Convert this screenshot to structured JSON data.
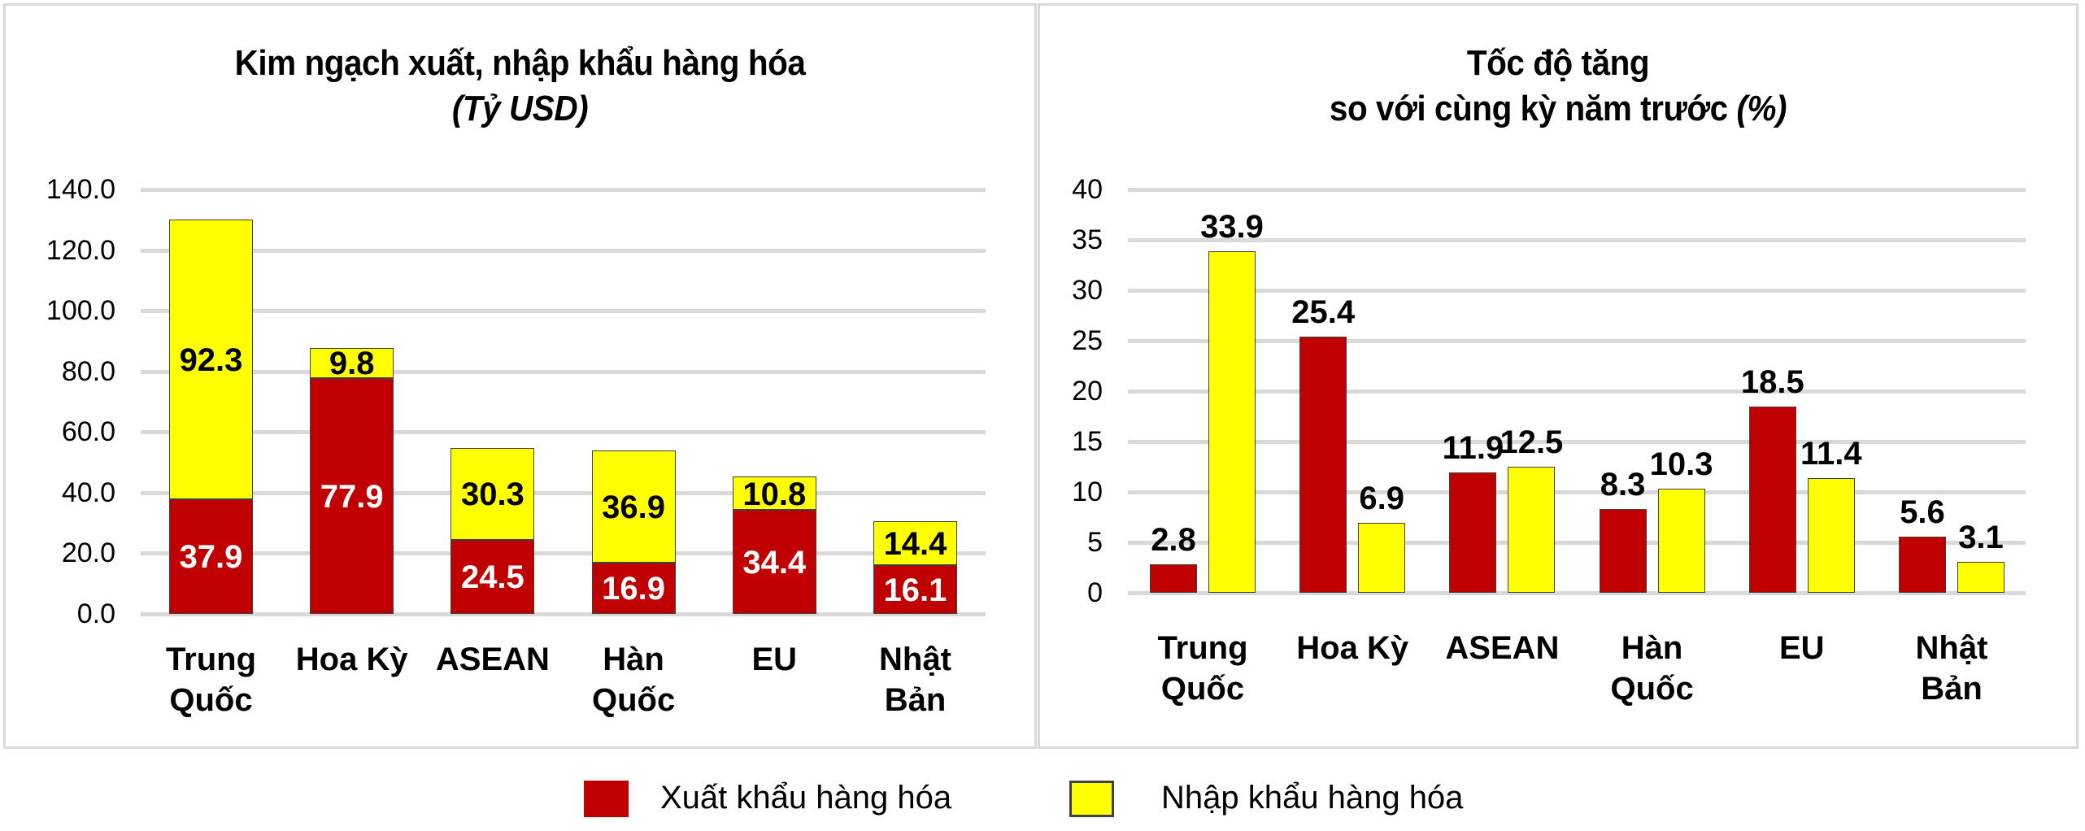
{
  "chart_data": [
    {
      "type": "bar",
      "stacked": true,
      "title": "Kim ngạch xuất, nhập khẩu hàng hóa",
      "subtitle": "(Tỷ USD)",
      "categories": [
        "Trung Quốc",
        "Hoa Kỳ",
        "ASEAN",
        "Hàn Quốc",
        "EU",
        "Nhật Bản"
      ],
      "series": [
        {
          "name": "Xuất khẩu hàng hóa",
          "color": "#c00000",
          "values": [
            37.9,
            77.9,
            24.5,
            16.9,
            34.4,
            16.1
          ]
        },
        {
          "name": "Nhập khẩu hàng hóa",
          "color": "#ffff00",
          "values": [
            92.3,
            9.8,
            30.3,
            36.9,
            10.8,
            14.4
          ]
        }
      ],
      "yticks": [
        "0.0",
        "20.0",
        "40.0",
        "60.0",
        "80.0",
        "100.0",
        "120.0",
        "140.0"
      ],
      "ylim": [
        0,
        140
      ],
      "xlabel": "",
      "ylabel": "",
      "grid": true
    },
    {
      "type": "bar",
      "stacked": false,
      "title": "Tốc độ tăng",
      "subtitle": "so với cùng kỳ năm trước",
      "subtitle_unit": "(%)",
      "categories": [
        "Trung Quốc",
        "Hoa Kỳ",
        "ASEAN",
        "Hàn Quốc",
        "EU",
        "Nhật Bản"
      ],
      "series": [
        {
          "name": "Xuất khẩu hàng hóa",
          "color": "#c00000",
          "values": [
            2.8,
            25.4,
            11.9,
            8.3,
            18.5,
            5.6
          ]
        },
        {
          "name": "Nhập khẩu hàng hóa",
          "color": "#ffff00",
          "values": [
            33.9,
            6.9,
            12.5,
            10.3,
            11.4,
            3.1
          ]
        }
      ],
      "yticks": [
        "0",
        "5",
        "10",
        "15",
        "20",
        "25",
        "30",
        "35",
        "40"
      ],
      "ylim": [
        0,
        40
      ],
      "xlabel": "",
      "ylabel": "",
      "grid": true
    }
  ],
  "left": {
    "title": "Kim ngạch xuất, nhập khẩu hàng hóa",
    "unit": "(Tỷ USD)",
    "categories": [
      "Trung\nQuốc",
      "Hoa Kỳ",
      "ASEAN",
      "Hàn\nQuốc",
      "EU",
      "Nhật\nBản"
    ]
  },
  "right": {
    "title_line1": "Tốc độ tăng",
    "title_line2": "so với cùng kỳ năm trước ",
    "unit": "(%)",
    "categories": [
      "Trung\nQuốc",
      "Hoa Kỳ",
      "ASEAN",
      "Hàn\nQuốc",
      "EU",
      "Nhật\nBản"
    ]
  },
  "legend": {
    "export_label": "Xuất khẩu hàng hóa",
    "import_label": "Nhập khẩu hàng hóa",
    "export_color": "#c00000",
    "import_color": "#ffff00"
  }
}
